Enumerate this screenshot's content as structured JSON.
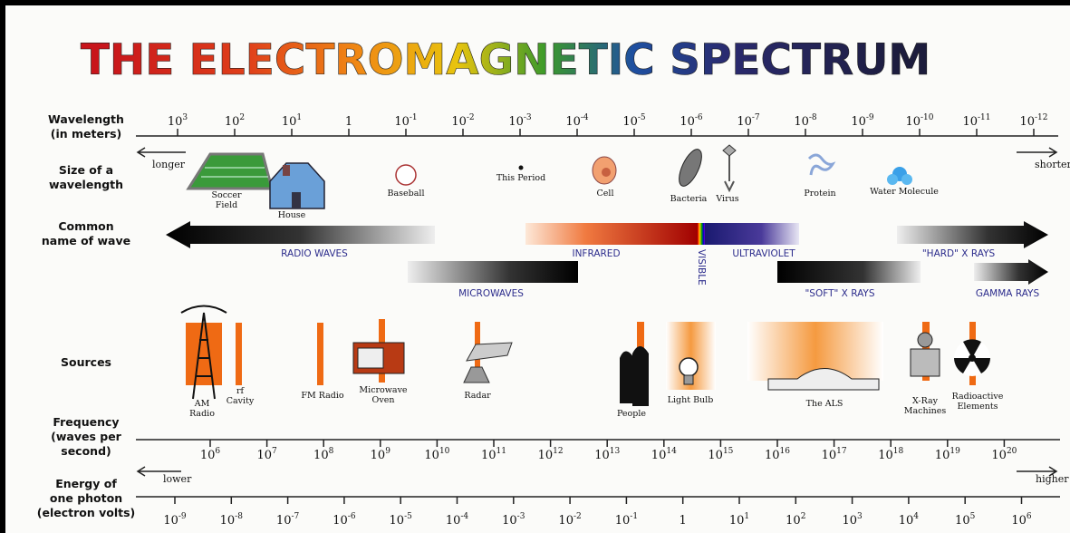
{
  "title": "THE ELECTROMAGNETIC SPECTRUM",
  "rows": {
    "wavelength": [
      "Wavelength",
      "(in meters)"
    ],
    "size": [
      "Size of a",
      "wavelength"
    ],
    "common": [
      "Common",
      "name of wave"
    ],
    "sources": [
      "Sources"
    ],
    "frequency": [
      "Frequency",
      "(waves per",
      "second)"
    ],
    "energy": [
      "Energy of",
      "one photon",
      "(electron volts)"
    ]
  },
  "wavelength": {
    "ticks": [
      {
        "base": "10",
        "exp": "3"
      },
      {
        "base": "10",
        "exp": "2"
      },
      {
        "base": "10",
        "exp": "1"
      },
      {
        "base": "1"
      },
      {
        "base": "10",
        "exp": "-1"
      },
      {
        "base": "10",
        "exp": "-2"
      },
      {
        "base": "10",
        "exp": "-3"
      },
      {
        "base": "10",
        "exp": "-4"
      },
      {
        "base": "10",
        "exp": "-5"
      },
      {
        "base": "10",
        "exp": "-6"
      },
      {
        "base": "10",
        "exp": "-7"
      },
      {
        "base": "10",
        "exp": "-8"
      },
      {
        "base": "10",
        "exp": "-9"
      },
      {
        "base": "10",
        "exp": "-10"
      },
      {
        "base": "10",
        "exp": "-11"
      },
      {
        "base": "10",
        "exp": "-12"
      }
    ],
    "left": "longer",
    "right": "shorter"
  },
  "sizes": [
    [
      "Soccer",
      "Field"
    ],
    [
      "House"
    ],
    [
      "Baseball"
    ],
    [
      "This Period"
    ],
    [
      "Cell"
    ],
    [
      "Bacteria"
    ],
    [
      "Virus"
    ],
    [
      "Protein"
    ],
    [
      "Water Molecule"
    ]
  ],
  "waves": [
    "RADIO WAVES",
    "INFRARED",
    "VISIBLE",
    "ULTRAVIOLET",
    "\"HARD\" X RAYS",
    "MICROWAVES",
    "\"SOFT\" X RAYS",
    "GAMMA RAYS"
  ],
  "sources": [
    [
      "AM",
      "Radio"
    ],
    [
      "rf",
      "Cavity"
    ],
    [
      "FM Radio"
    ],
    [
      "Microwave",
      "Oven"
    ],
    [
      "Radar"
    ],
    [
      "People"
    ],
    [
      "Light Bulb"
    ],
    [
      "The ALS"
    ],
    [
      "X-Ray",
      "Machines"
    ],
    [
      "Radioactive",
      "Elements"
    ]
  ],
  "frequency": {
    "ticks": [
      {
        "base": "10",
        "exp": "6"
      },
      {
        "base": "10",
        "exp": "7"
      },
      {
        "base": "10",
        "exp": "8"
      },
      {
        "base": "10",
        "exp": "9"
      },
      {
        "base": "10",
        "exp": "10"
      },
      {
        "base": "10",
        "exp": "11"
      },
      {
        "base": "10",
        "exp": "12"
      },
      {
        "base": "10",
        "exp": "13"
      },
      {
        "base": "10",
        "exp": "14"
      },
      {
        "base": "10",
        "exp": "15"
      },
      {
        "base": "10",
        "exp": "16"
      },
      {
        "base": "10",
        "exp": "17"
      },
      {
        "base": "10",
        "exp": "18"
      },
      {
        "base": "10",
        "exp": "19"
      },
      {
        "base": "10",
        "exp": "20"
      }
    ]
  },
  "energy": {
    "ticks": [
      {
        "base": "10",
        "exp": "-9"
      },
      {
        "base": "10",
        "exp": "-8"
      },
      {
        "base": "10",
        "exp": "-7"
      },
      {
        "base": "10",
        "exp": "-6"
      },
      {
        "base": "10",
        "exp": "-5"
      },
      {
        "base": "10",
        "exp": "-4"
      },
      {
        "base": "10",
        "exp": "-3"
      },
      {
        "base": "10",
        "exp": "-2"
      },
      {
        "base": "10",
        "exp": "-1"
      },
      {
        "base": "1"
      },
      {
        "base": "10",
        "exp": "1"
      },
      {
        "base": "10",
        "exp": "2"
      },
      {
        "base": "10",
        "exp": "3"
      },
      {
        "base": "10",
        "exp": "4"
      },
      {
        "base": "10",
        "exp": "5"
      },
      {
        "base": "10",
        "exp": "6"
      }
    ],
    "left": "lower",
    "right": "higher"
  }
}
